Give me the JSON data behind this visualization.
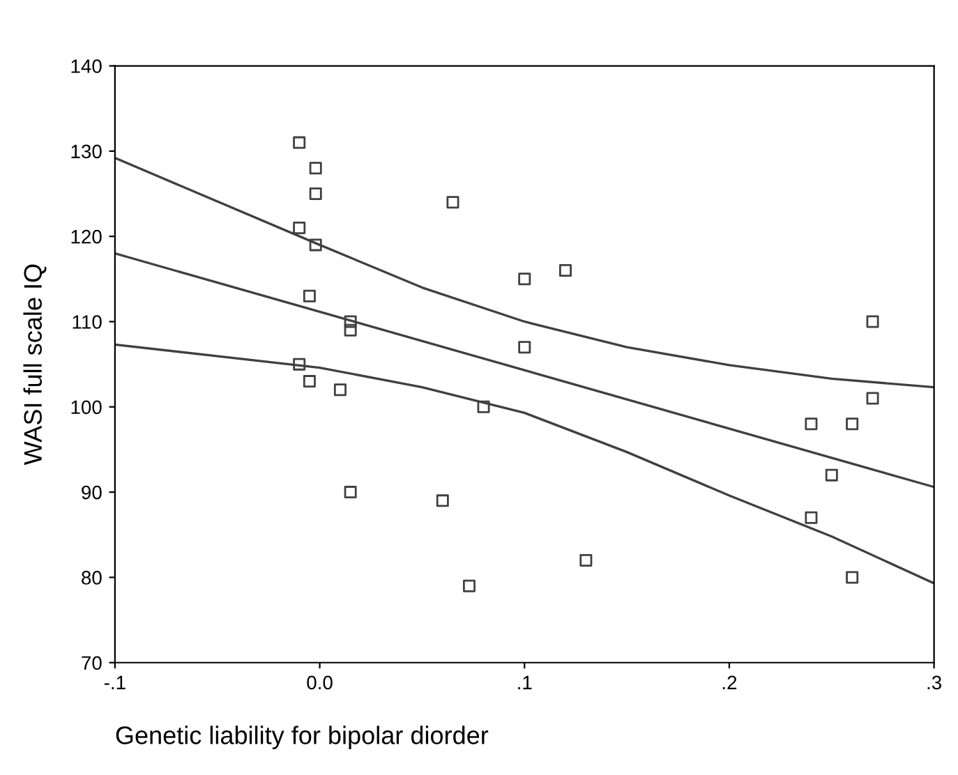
{
  "chart_data": {
    "type": "scatter",
    "xlabel": "Genetic liability for bipolar diorder",
    "ylabel": "WASI full scale IQ",
    "xlim": [
      -0.1,
      0.3
    ],
    "xticks": [
      {
        "value": -0.1,
        "label": "-.1"
      },
      {
        "value": 0,
        "label": "0.0"
      },
      {
        "value": 0.1,
        "label": ".1"
      },
      {
        "value": 0.2,
        "label": ".2"
      },
      {
        "value": 0.3,
        "label": ".3"
      }
    ],
    "ylim": [
      70,
      140
    ],
    "yticks": [
      70,
      80,
      90,
      100,
      110,
      120,
      130,
      140
    ],
    "grid": false,
    "legend": false,
    "series": [
      {
        "marker": "square",
        "color": "#404040",
        "x": [
          -0.01,
          -0.002,
          -0.002,
          -0.01,
          -0.002,
          -0.005,
          0.015,
          0.015,
          -0.01,
          -0.005,
          0.01,
          0.015,
          0.065,
          0.06,
          0.08,
          0.073,
          0.1,
          0.1,
          0.12,
          0.13,
          0.24,
          0.24,
          0.25,
          0.26,
          0.26,
          0.27,
          0.27
        ],
        "values": [
          131,
          128,
          125,
          121,
          119,
          113,
          110,
          109,
          105,
          103,
          102,
          90,
          124,
          89,
          100,
          79,
          115,
          107,
          116,
          82,
          98,
          87,
          92,
          98,
          80,
          110,
          101
        ]
      },
      {
        "type": "line",
        "marker": "none",
        "line_style": "solid",
        "color": "#404040",
        "x": [
          -0.1,
          0.3
        ],
        "values": [
          118,
          90.6
        ]
      },
      {
        "type": "line",
        "marker": "none",
        "line_style": "solid",
        "color": "#404040",
        "x": [
          -0.1,
          0,
          0.05,
          0.1,
          0.15,
          0.2,
          0.25,
          0.3
        ],
        "values": [
          129.2,
          119,
          114,
          110,
          107,
          104.9,
          103.3,
          102.3
        ]
      },
      {
        "type": "line",
        "marker": "none",
        "line_style": "solid",
        "color": "#404040",
        "x": [
          -0.1,
          0,
          0.05,
          0.1,
          0.15,
          0.2,
          0.25,
          0.3
        ],
        "values": [
          107.3,
          104.6,
          102.3,
          99.3,
          94.7,
          89.6,
          84.8,
          79.3
        ]
      }
    ]
  }
}
